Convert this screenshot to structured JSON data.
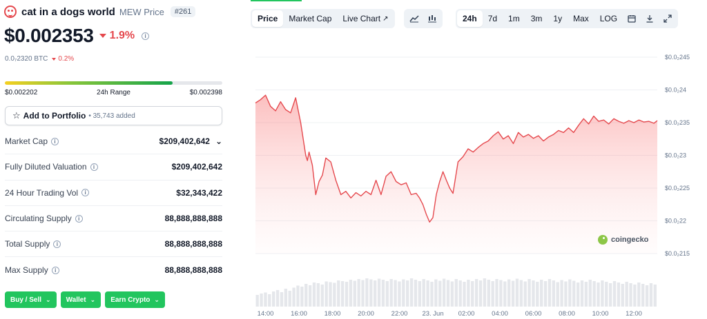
{
  "coin": {
    "name": "cat in a dogs world",
    "symbol_label": "MEW Price",
    "rank": "#261",
    "price": "$0.002353",
    "change_24h": "1.9%",
    "btc_price": "0.0₇2320 BTC",
    "btc_change": "0.2%",
    "info_glyph": "i"
  },
  "range": {
    "low": "$0.002202",
    "label": "24h Range",
    "high": "$0.002398",
    "position_fraction": 0.77
  },
  "portfolio": {
    "label": "Add to Portfolio",
    "count": "• 35,743 added",
    "icon": "star-icon"
  },
  "stats": [
    {
      "label": "Market Cap",
      "value": "$209,402,642",
      "has_dropdown": true
    },
    {
      "label": "Fully Diluted Valuation",
      "value": "$209,402,642"
    },
    {
      "label": "24 Hour Trading Vol",
      "value": "$32,343,422"
    },
    {
      "label": "Circulating Supply",
      "value": "88,888,888,888"
    },
    {
      "label": "Total Supply",
      "value": "88,888,888,888"
    },
    {
      "label": "Max Supply",
      "value": "88,888,888,888"
    }
  ],
  "actions": {
    "buy_sell": "Buy / Sell",
    "wallet": "Wallet",
    "earn": "Earn Crypto"
  },
  "tabs": {
    "price": "Price",
    "market_cap": "Market Cap",
    "live_chart": "Live Chart"
  },
  "ranges": [
    "24h",
    "7d",
    "1m",
    "3m",
    "1y",
    "Max",
    "LOG"
  ],
  "watermark": "coingecko",
  "colors": {
    "accent_green": "#22c55e",
    "down_red": "#e5484d",
    "line": "#e5484d"
  },
  "chart_data": {
    "type": "area",
    "y_tick_labels": [
      "$0.0₂245",
      "$0.0₂24",
      "$0.0₂235",
      "$0.0₂23",
      "$0.0₂225",
      "$0.0₂22",
      "$0.0₂215"
    ],
    "y_ticks": [
      0.00245,
      0.0024,
      0.00235,
      0.0023,
      0.00225,
      0.0022,
      0.00215
    ],
    "ylim": [
      0.00215,
      0.00245
    ],
    "x_tick_labels": [
      "14:00",
      "16:00",
      "18:00",
      "20:00",
      "22:00",
      "23. Jun",
      "02:00",
      "04:00",
      "06:00",
      "08:00",
      "10:00",
      "12:00"
    ],
    "x_ticks": [
      0,
      2,
      4,
      6,
      8,
      10,
      12,
      14,
      16,
      18,
      20,
      22
    ],
    "grid": true,
    "series": [
      {
        "x": [
          -0.6,
          -0.3,
          0,
          0.3,
          0.6,
          0.9,
          1.2,
          1.5,
          1.8,
          2.1,
          2.4,
          2.5,
          2.6,
          2.8,
          3.0,
          3.2,
          3.4,
          3.6,
          3.9,
          4.2,
          4.5,
          4.8,
          5.1,
          5.4,
          5.7,
          6.0,
          6.3,
          6.6,
          6.9,
          7.2,
          7.5,
          7.8,
          8.1,
          8.4,
          8.7,
          9.0,
          9.2,
          9.4,
          9.6,
          9.8,
          10.0,
          10.2,
          10.4,
          10.6,
          10.8,
          11.0,
          11.2,
          11.5,
          11.8,
          12.1,
          12.4,
          12.7,
          13.0,
          13.3,
          13.6,
          13.9,
          14.2,
          14.5,
          14.8,
          15.1,
          15.4,
          15.7,
          16.0,
          16.3,
          16.6,
          16.9,
          17.2,
          17.5,
          17.8,
          18.1,
          18.4,
          18.7,
          19.0,
          19.3,
          19.6,
          19.9,
          20.2,
          20.5,
          20.8,
          21.1,
          21.4,
          21.7,
          22.0,
          22.3,
          22.6,
          22.9,
          23.2,
          23.4
        ],
        "y": [
          0.00238,
          0.002385,
          0.002392,
          0.002375,
          0.002368,
          0.002382,
          0.00237,
          0.002365,
          0.002388,
          0.00235,
          0.0023,
          0.002292,
          0.002305,
          0.002285,
          0.00224,
          0.00226,
          0.00227,
          0.002296,
          0.00229,
          0.002262,
          0.00224,
          0.002245,
          0.002235,
          0.002243,
          0.002238,
          0.002245,
          0.00224,
          0.002262,
          0.00224,
          0.002268,
          0.002275,
          0.00226,
          0.002255,
          0.002258,
          0.00224,
          0.002242,
          0.002235,
          0.002225,
          0.00221,
          0.002198,
          0.002205,
          0.00224,
          0.00226,
          0.002275,
          0.002262,
          0.00225,
          0.002242,
          0.00229,
          0.002298,
          0.00231,
          0.002305,
          0.002312,
          0.002318,
          0.002322,
          0.00233,
          0.002336,
          0.002325,
          0.00233,
          0.002318,
          0.002335,
          0.002328,
          0.002332,
          0.002326,
          0.00233,
          0.002322,
          0.002328,
          0.002332,
          0.002338,
          0.002335,
          0.002342,
          0.002335,
          0.002346,
          0.002356,
          0.002348,
          0.00236,
          0.002352,
          0.002354,
          0.002348,
          0.002356,
          0.002352,
          0.002349,
          0.002353,
          0.00235,
          0.002354,
          0.002351,
          0.002352,
          0.002349,
          0.002353
        ]
      }
    ],
    "volume": [
      0.34,
      0.38,
      0.41,
      0.36,
      0.44,
      0.48,
      0.42,
      0.52,
      0.46,
      0.55,
      0.61,
      0.58,
      0.66,
      0.62,
      0.7,
      0.68,
      0.64,
      0.73,
      0.71,
      0.69,
      0.76,
      0.74,
      0.72,
      0.78,
      0.75,
      0.8,
      0.77,
      0.82,
      0.79,
      0.76,
      0.81,
      0.78,
      0.74,
      0.8,
      0.77,
      0.73,
      0.79,
      0.76,
      0.82,
      0.78,
      0.74,
      0.8,
      0.76,
      0.72,
      0.79,
      0.75,
      0.81,
      0.77,
      0.73,
      0.8,
      0.76,
      0.72,
      0.78,
      0.74,
      0.8,
      0.76,
      0.82,
      0.78,
      0.74,
      0.8,
      0.77,
      0.73,
      0.79,
      0.75,
      0.81,
      0.77,
      0.73,
      0.8,
      0.76,
      0.72,
      0.78,
      0.74,
      0.8,
      0.76,
      0.71,
      0.77,
      0.73,
      0.79,
      0.75,
      0.7,
      0.76,
      0.72,
      0.78,
      0.74,
      0.7,
      0.76,
      0.72,
      0.68,
      0.74,
      0.7,
      0.66,
      0.72,
      0.68,
      0.64,
      0.7,
      0.66,
      0.62,
      0.68,
      0.64
    ]
  }
}
